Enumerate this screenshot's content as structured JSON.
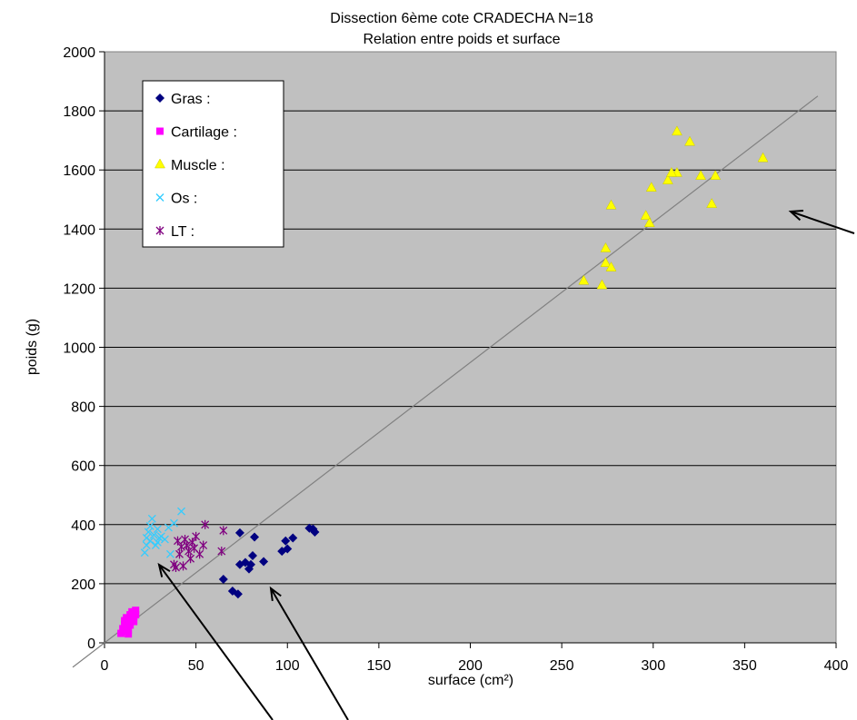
{
  "chart_data": {
    "type": "scatter",
    "title": "Dissection 6ème cote CRADECHA N=18",
    "subtitle": "Relation entre poids et surface",
    "xlabel": "surface (cm²)",
    "ylabel": "poids (g)",
    "xlim": [
      0,
      400
    ],
    "ylim": [
      0,
      2000
    ],
    "x_ticks": [
      "0",
      "50",
      "100",
      "150",
      "200",
      "250",
      "300",
      "350",
      "400"
    ],
    "y_ticks": [
      "0",
      "200",
      "400",
      "600",
      "800",
      "1000",
      "1200",
      "1400",
      "1600",
      "1800",
      "2000"
    ],
    "grid": "horizontal",
    "legend_position": "top-left",
    "background_color": "#c0c0c0",
    "series": [
      {
        "name": "Gras :",
        "marker": "diamond",
        "color": "#000080",
        "points": [
          [
            65,
            215
          ],
          [
            70,
            175
          ],
          [
            73,
            165
          ],
          [
            74,
            265
          ],
          [
            74,
            372
          ],
          [
            77,
            272
          ],
          [
            79,
            250
          ],
          [
            80,
            265
          ],
          [
            81,
            295
          ],
          [
            82,
            358
          ],
          [
            87,
            275
          ],
          [
            97,
            310
          ],
          [
            99,
            345
          ],
          [
            100,
            318
          ],
          [
            103,
            355
          ],
          [
            112,
            388
          ],
          [
            114,
            385
          ],
          [
            115,
            375
          ]
        ]
      },
      {
        "name": "Cartilage :",
        "marker": "square",
        "color": "#ff00ff",
        "points": [
          [
            9,
            32
          ],
          [
            10,
            48
          ],
          [
            11,
            40
          ],
          [
            11,
            62
          ],
          [
            12,
            85
          ],
          [
            12,
            55
          ],
          [
            13,
            42
          ],
          [
            13,
            70
          ],
          [
            14,
            95
          ],
          [
            14,
            60
          ],
          [
            15,
            78
          ],
          [
            15,
            105
          ],
          [
            16,
            88
          ],
          [
            16,
            72
          ],
          [
            17,
            110
          ],
          [
            17,
            95
          ],
          [
            11,
            75
          ],
          [
            13,
            30
          ]
        ]
      },
      {
        "name": "Muscle :",
        "marker": "triangle",
        "color": "#ffff00",
        "points": [
          [
            262,
            1225
          ],
          [
            272,
            1210
          ],
          [
            274,
            1335
          ],
          [
            274,
            1285
          ],
          [
            277,
            1270
          ],
          [
            277,
            1480
          ],
          [
            296,
            1445
          ],
          [
            298,
            1420
          ],
          [
            299,
            1540
          ],
          [
            308,
            1565
          ],
          [
            313,
            1730
          ],
          [
            313,
            1590
          ],
          [
            320,
            1695
          ],
          [
            326,
            1580
          ],
          [
            332,
            1485
          ],
          [
            334,
            1580
          ],
          [
            360,
            1640
          ],
          [
            310,
            1590
          ]
        ]
      },
      {
        "name": "Os :",
        "marker": "x",
        "color": "#33ccff",
        "points": [
          [
            22,
            305
          ],
          [
            23,
            330
          ],
          [
            23,
            355
          ],
          [
            24,
            375
          ],
          [
            25,
            395
          ],
          [
            25,
            345
          ],
          [
            26,
            420
          ],
          [
            27,
            365
          ],
          [
            28,
            330
          ],
          [
            29,
            340
          ],
          [
            30,
            355
          ],
          [
            31,
            360
          ],
          [
            33,
            350
          ],
          [
            35,
            390
          ],
          [
            36,
            300
          ],
          [
            38,
            405
          ],
          [
            42,
            445
          ],
          [
            29,
            385
          ]
        ]
      },
      {
        "name": "LT :",
        "marker": "asterisk",
        "color": "#800080",
        "points": [
          [
            38,
            265
          ],
          [
            39,
            255
          ],
          [
            40,
            345
          ],
          [
            41,
            300
          ],
          [
            42,
            325
          ],
          [
            43,
            260
          ],
          [
            44,
            350
          ],
          [
            45,
            330
          ],
          [
            46,
            310
          ],
          [
            47,
            285
          ],
          [
            48,
            340
          ],
          [
            49,
            320
          ],
          [
            50,
            360
          ],
          [
            52,
            300
          ],
          [
            54,
            330
          ],
          [
            55,
            400
          ],
          [
            64,
            310
          ],
          [
            65,
            380
          ]
        ]
      }
    ],
    "trendline": {
      "x": [
        0,
        390
      ],
      "y": [
        0,
        1850
      ]
    },
    "annotation_arrows": [
      {
        "from": [
          940,
          257
        ],
        "to": [
          870,
          233
        ]
      },
      {
        "from": [
          300,
          793
        ],
        "to": [
          175,
          622
        ]
      },
      {
        "from": [
          383,
          793
        ],
        "to": [
          298,
          648
        ]
      }
    ]
  }
}
